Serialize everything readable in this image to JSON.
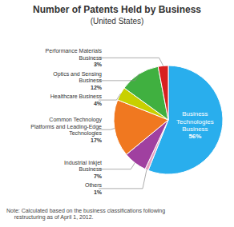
{
  "chart_data": {
    "type": "pie",
    "title": "Number of Patents Held by Business",
    "subtitle": "(United States)",
    "note": "Note: Calculated based on the business classifications following\n     restructuring as of April 1, 2012.",
    "categories": [
      "Business\nTechnologies\nBusiness",
      "Others",
      "Industrial Inkjet\nBusiness",
      "Common Technology\nPlatforms and Leading-Edge\nTechnologies",
      "Healthcare Business",
      "Optics and Sensing\nBusiness",
      "Performance Materials\nBusiness"
    ],
    "values": [
      56,
      1,
      7,
      17,
      4,
      12,
      3
    ],
    "value_labels": [
      "56%",
      "1%",
      "7%",
      "17%",
      "4%",
      "12%",
      "3%"
    ],
    "colors": [
      "#29AEED",
      "#E8A0C0",
      "#A040A0",
      "#F07820",
      "#C8D000",
      "#40B040",
      "#D82020"
    ],
    "data_labels": true
  }
}
